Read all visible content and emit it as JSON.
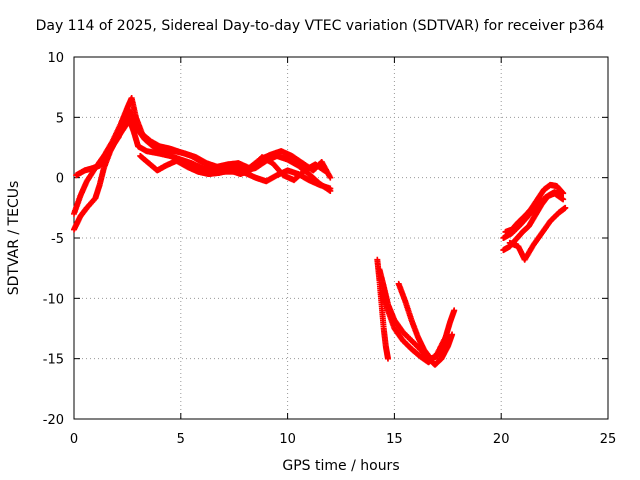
{
  "chart_data": {
    "type": "scatter",
    "title": "Day 114 of 2025, Sidereal Day-to-day VTEC variation (SDTVAR) for receiver p364",
    "xlabel": "GPS time / hours",
    "ylabel": "SDTVAR / TECUs",
    "xlim": [
      0,
      25
    ],
    "ylim": [
      -20,
      10
    ],
    "x_ticks": [
      0,
      5,
      10,
      15,
      20,
      25
    ],
    "y_ticks": [
      -20,
      -15,
      -10,
      -5,
      0,
      5,
      10
    ],
    "x_tick_labels": [
      "0",
      "5",
      "10",
      "15",
      "20",
      "25"
    ],
    "y_tick_labels": [
      "-20",
      "-15",
      "-10",
      "-5",
      "0",
      "5",
      "10"
    ],
    "grid": true,
    "marker_color": "#ff0000",
    "series": [
      {
        "segments": [
          [
            [
              0.0,
              -3.0
            ],
            [
              0.3,
              -1.5
            ],
            [
              0.6,
              -0.3
            ],
            [
              1.0,
              0.8
            ],
            [
              1.4,
              1.8
            ],
            [
              1.8,
              3.0
            ],
            [
              2.2,
              4.5
            ],
            [
              2.5,
              5.8
            ],
            [
              2.7,
              6.6
            ],
            [
              2.9,
              5.0
            ],
            [
              3.2,
              3.6
            ],
            [
              3.6,
              3.0
            ],
            [
              4.0,
              2.6
            ],
            [
              4.5,
              2.4
            ],
            [
              5.0,
              2.1
            ],
            [
              5.5,
              1.8
            ],
            [
              6.0,
              1.3
            ],
            [
              6.5,
              0.9
            ],
            [
              7.0,
              0.7
            ],
            [
              7.5,
              0.8
            ],
            [
              8.0,
              0.6
            ],
            [
              8.5,
              0.8
            ],
            [
              9.0,
              1.4
            ],
            [
              9.5,
              1.8
            ],
            [
              10.0,
              1.5
            ],
            [
              10.5,
              1.0
            ],
            [
              11.0,
              0.3
            ],
            [
              11.5,
              -0.5
            ],
            [
              12.0,
              -1.1
            ]
          ],
          [
            [
              0.0,
              -4.3
            ],
            [
              0.3,
              -3.2
            ],
            [
              0.6,
              -2.5
            ],
            [
              1.0,
              -1.7
            ],
            [
              1.2,
              -0.6
            ],
            [
              1.4,
              0.8
            ],
            [
              1.7,
              2.2
            ],
            [
              2.0,
              3.2
            ],
            [
              2.3,
              4.0
            ],
            [
              2.6,
              4.8
            ],
            [
              2.8,
              3.8
            ],
            [
              3.0,
              2.6
            ],
            [
              3.4,
              2.2
            ],
            [
              4.0,
              2.0
            ],
            [
              4.5,
              1.8
            ],
            [
              5.0,
              1.5
            ],
            [
              5.5,
              1.2
            ],
            [
              6.0,
              0.8
            ],
            [
              6.5,
              0.5
            ],
            [
              7.0,
              0.5
            ],
            [
              7.5,
              0.5
            ],
            [
              8.0,
              0.4
            ],
            [
              8.5,
              0.0
            ],
            [
              9.0,
              -0.3
            ],
            [
              9.5,
              0.2
            ],
            [
              10.0,
              0.6
            ],
            [
              10.5,
              0.3
            ],
            [
              11.0,
              -0.2
            ],
            [
              11.5,
              -0.6
            ],
            [
              12.0,
              -0.9
            ]
          ],
          [
            [
              0.1,
              0.2
            ],
            [
              0.5,
              0.6
            ],
            [
              0.9,
              0.8
            ],
            [
              1.2,
              1.0
            ],
            [
              1.5,
              1.7
            ],
            [
              1.8,
              2.6
            ],
            [
              2.1,
              3.4
            ],
            [
              2.4,
              4.8
            ],
            [
              2.6,
              5.6
            ],
            [
              2.9,
              4.2
            ],
            [
              3.3,
              3.2
            ],
            [
              3.7,
              2.6
            ],
            [
              4.2,
              2.3
            ],
            [
              4.7,
              2.2
            ],
            [
              5.2,
              2.0
            ],
            [
              5.7,
              1.7
            ],
            [
              6.2,
              1.2
            ],
            [
              6.7,
              0.9
            ],
            [
              7.2,
              1.1
            ],
            [
              7.7,
              1.2
            ],
            [
              8.2,
              0.8
            ],
            [
              8.7,
              1.5
            ],
            [
              9.2,
              1.9
            ],
            [
              9.7,
              2.2
            ],
            [
              10.2,
              1.8
            ],
            [
              10.7,
              1.2
            ],
            [
              11.2,
              0.6
            ],
            [
              11.6,
              1.3
            ],
            [
              12.0,
              0.0
            ]
          ],
          [
            [
              3.1,
              1.8
            ],
            [
              3.5,
              1.2
            ],
            [
              3.9,
              0.6
            ],
            [
              4.3,
              1.0
            ],
            [
              4.8,
              1.4
            ],
            [
              5.3,
              0.9
            ],
            [
              5.8,
              0.5
            ],
            [
              6.3,
              0.3
            ],
            [
              6.8,
              0.4
            ],
            [
              7.3,
              0.6
            ],
            [
              7.8,
              0.3
            ],
            [
              8.3,
              0.7
            ],
            [
              8.8,
              1.7
            ],
            [
              9.3,
              1.2
            ],
            [
              9.8,
              0.2
            ],
            [
              10.3,
              -0.2
            ],
            [
              10.8,
              0.6
            ],
            [
              11.3,
              1.1
            ],
            [
              11.8,
              0.5
            ]
          ],
          [
            [
              14.2,
              -6.8
            ],
            [
              14.3,
              -8.5
            ],
            [
              14.4,
              -10.5
            ],
            [
              14.5,
              -12.5
            ],
            [
              14.6,
              -14.0
            ],
            [
              14.7,
              -15.0
            ]
          ],
          [
            [
              14.3,
              -7.6
            ],
            [
              14.5,
              -9.0
            ],
            [
              14.7,
              -10.5
            ],
            [
              15.0,
              -11.8
            ],
            [
              15.4,
              -12.8
            ],
            [
              15.8,
              -13.5
            ],
            [
              16.2,
              -14.2
            ],
            [
              16.6,
              -15.0
            ],
            [
              16.9,
              -15.5
            ],
            [
              17.2,
              -15.0
            ],
            [
              17.5,
              -14.0
            ],
            [
              17.7,
              -13.0
            ]
          ],
          [
            [
              14.4,
              -9.5
            ],
            [
              14.7,
              -11.0
            ],
            [
              15.0,
              -12.5
            ],
            [
              15.4,
              -13.5
            ],
            [
              15.8,
              -14.2
            ],
            [
              16.2,
              -14.8
            ],
            [
              16.6,
              -15.3
            ],
            [
              17.0,
              -14.6
            ],
            [
              17.4,
              -13.2
            ],
            [
              17.6,
              -12.0
            ],
            [
              17.8,
              -11.0
            ]
          ],
          [
            [
              15.2,
              -8.8
            ],
            [
              15.5,
              -10.2
            ],
            [
              15.8,
              -11.8
            ],
            [
              16.1,
              -13.2
            ],
            [
              16.4,
              -14.3
            ],
            [
              16.7,
              -15.0
            ],
            [
              17.0,
              -14.8
            ],
            [
              17.3,
              -14.0
            ],
            [
              17.6,
              -13.2
            ]
          ],
          [
            [
              20.2,
              -4.5
            ],
            [
              20.5,
              -4.3
            ],
            [
              20.8,
              -3.7
            ],
            [
              21.1,
              -3.2
            ],
            [
              21.4,
              -2.6
            ],
            [
              21.7,
              -1.8
            ],
            [
              22.0,
              -1.0
            ],
            [
              22.3,
              -0.6
            ],
            [
              22.6,
              -0.7
            ],
            [
              22.9,
              -1.3
            ]
          ],
          [
            [
              20.1,
              -6.0
            ],
            [
              20.4,
              -5.7
            ],
            [
              20.7,
              -5.1
            ],
            [
              21.0,
              -4.5
            ],
            [
              21.3,
              -4.0
            ],
            [
              21.6,
              -3.1
            ],
            [
              21.9,
              -2.2
            ],
            [
              22.2,
              -1.5
            ],
            [
              22.5,
              -1.2
            ],
            [
              22.8,
              -1.5
            ]
          ],
          [
            [
              20.1,
              -5.0
            ],
            [
              20.5,
              -4.6
            ],
            [
              20.9,
              -3.9
            ],
            [
              21.3,
              -3.1
            ],
            [
              21.7,
              -2.3
            ],
            [
              22.1,
              -1.6
            ],
            [
              22.5,
              -1.3
            ],
            [
              22.9,
              -1.8
            ]
          ],
          [
            [
              20.4,
              -5.4
            ],
            [
              20.8,
              -5.7
            ],
            [
              21.1,
              -6.8
            ],
            [
              21.5,
              -5.6
            ],
            [
              21.9,
              -4.6
            ],
            [
              22.3,
              -3.6
            ],
            [
              22.7,
              -2.9
            ],
            [
              23.0,
              -2.5
            ]
          ]
        ]
      }
    ]
  }
}
